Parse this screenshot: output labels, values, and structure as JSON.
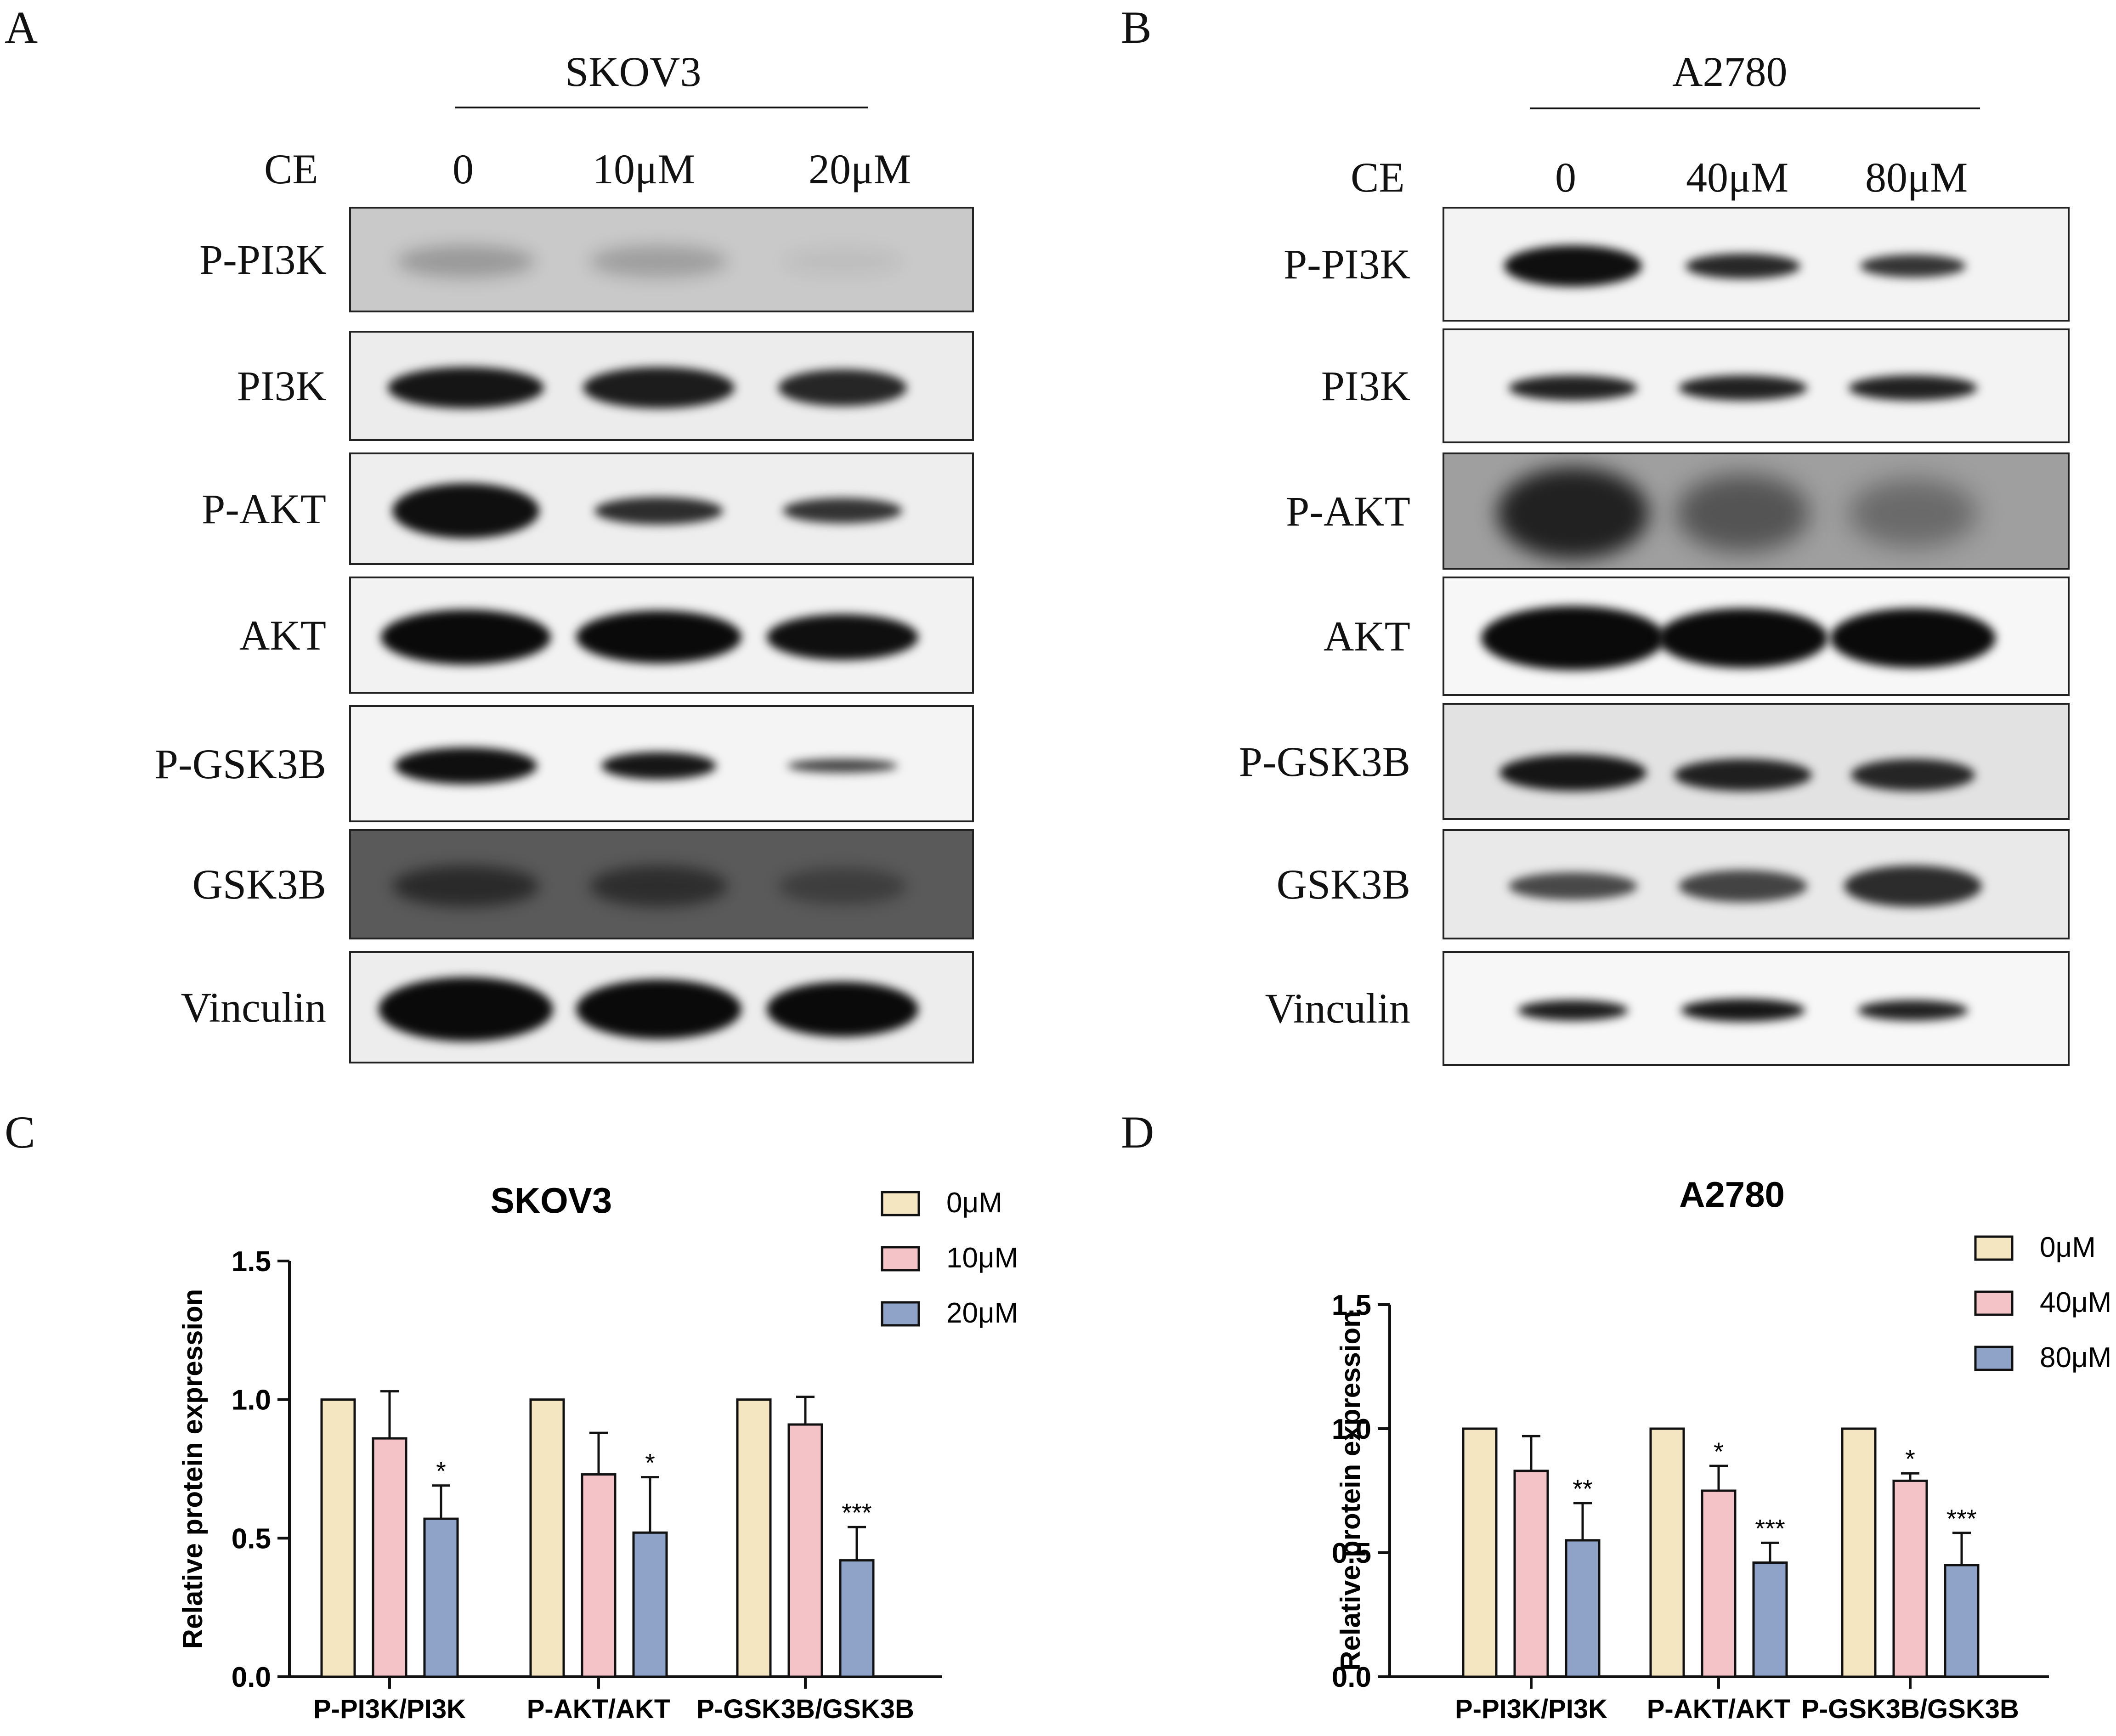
{
  "panels": {
    "A": {
      "letter": "A",
      "cell_line": "SKOV3",
      "treatment_label": "CE",
      "doses": [
        "0",
        "10μM",
        "20μM"
      ],
      "proteins": [
        "P-PI3K",
        "PI3K",
        "P-AKT",
        "AKT",
        "P-GSK3B",
        "GSK3B",
        "Vinculin"
      ]
    },
    "B": {
      "letter": "B",
      "cell_line": "A2780",
      "treatment_label": "CE",
      "doses": [
        "0",
        "40μM",
        "80μM"
      ],
      "proteins": [
        "P-PI3K",
        "PI3K",
        "P-AKT",
        "AKT",
        "P-GSK3B",
        "GSK3B",
        "Vinculin"
      ]
    },
    "C": {
      "letter": "C"
    },
    "D": {
      "letter": "D"
    }
  },
  "chart_data": [
    {
      "type": "bar",
      "title": "SKOV3",
      "ylabel": "Relative protein expression",
      "xlabel": "",
      "ylim": [
        0,
        1.5
      ],
      "yticks": [
        "0.0",
        "0.5",
        "1.0",
        "1.5"
      ],
      "categories": [
        "P-PI3K/PI3K",
        "P-AKT/AKT",
        "P-GSK3B/GSK3B"
      ],
      "legend_position": "top-right",
      "series": [
        {
          "name": "0μM",
          "color": "#f5e6c2",
          "values": [
            1.0,
            1.0,
            1.0
          ],
          "errors": [
            0,
            0,
            0
          ],
          "sig": [
            "",
            "",
            ""
          ]
        },
        {
          "name": "10μM",
          "color": "#f4c3c8",
          "values": [
            0.86,
            0.73,
            0.91
          ],
          "errors": [
            0.17,
            0.15,
            0.1
          ],
          "sig": [
            "",
            "",
            ""
          ]
        },
        {
          "name": "20μM",
          "color": "#8ea3c7",
          "values": [
            0.57,
            0.52,
            0.42
          ],
          "errors": [
            0.12,
            0.2,
            0.12
          ],
          "sig": [
            "*",
            "*",
            "***"
          ]
        }
      ]
    },
    {
      "type": "bar",
      "title": "A2780",
      "ylabel": "Relative protein expression",
      "xlabel": "",
      "ylim": [
        0,
        1.5
      ],
      "yticks": [
        "0.0",
        "0.5",
        "1.0",
        "1.5"
      ],
      "categories": [
        "P-PI3K/PI3K",
        "P-AKT/AKT",
        "P-GSK3B/GSK3B"
      ],
      "legend_position": "top-right",
      "series": [
        {
          "name": "0μM",
          "color": "#f5e6c2",
          "values": [
            1.0,
            1.0,
            1.0
          ],
          "errors": [
            0,
            0,
            0
          ],
          "sig": [
            "",
            "",
            ""
          ]
        },
        {
          "name": "40μM",
          "color": "#f4c3c8",
          "values": [
            0.83,
            0.75,
            0.79
          ],
          "errors": [
            0.14,
            0.1,
            0.03
          ],
          "sig": [
            "",
            "*",
            "*"
          ]
        },
        {
          "name": "80μM",
          "color": "#8ea3c7",
          "values": [
            0.55,
            0.46,
            0.45
          ],
          "errors": [
            0.15,
            0.08,
            0.13
          ],
          "sig": [
            "**",
            "***",
            "***"
          ]
        }
      ]
    }
  ]
}
